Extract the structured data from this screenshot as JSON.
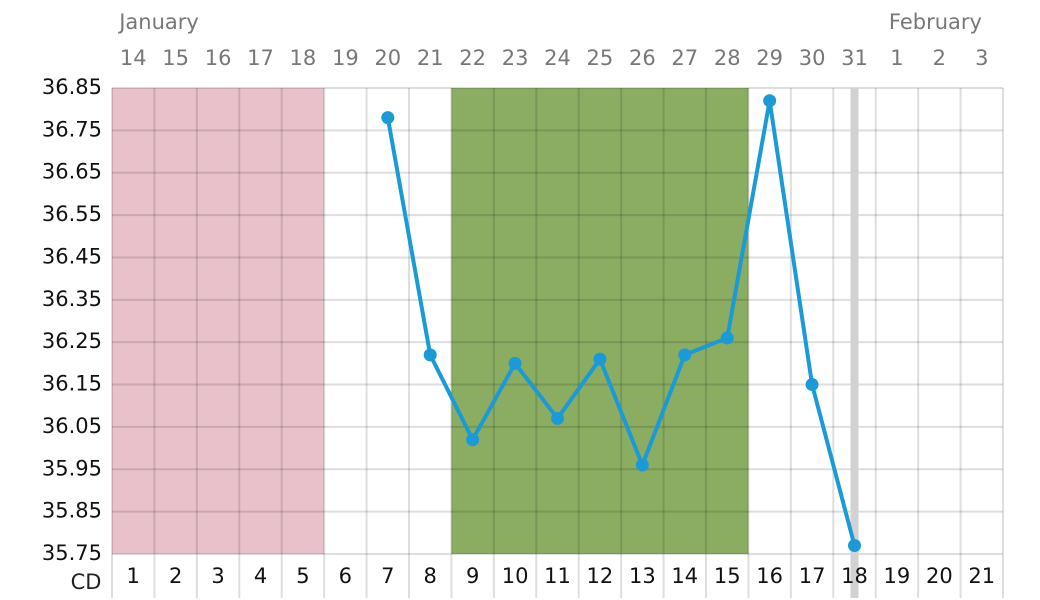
{
  "chart_data": {
    "type": "line",
    "x_label": "CD",
    "categories": [
      1,
      2,
      3,
      4,
      5,
      6,
      7,
      8,
      9,
      10,
      11,
      12,
      13,
      14,
      15,
      16,
      17,
      18,
      19,
      20,
      21
    ],
    "dates": [
      14,
      15,
      16,
      17,
      18,
      19,
      20,
      21,
      22,
      23,
      24,
      25,
      26,
      27,
      28,
      29,
      30,
      31,
      1,
      2,
      3
    ],
    "months": [
      "January",
      null,
      null,
      null,
      null,
      null,
      null,
      null,
      null,
      null,
      null,
      null,
      null,
      null,
      null,
      null,
      null,
      null,
      "February",
      null,
      null
    ],
    "series": [
      {
        "color": "#1b9ad8",
        "values": [
          null,
          null,
          null,
          null,
          null,
          null,
          36.78,
          36.22,
          36.02,
          36.2,
          36.07,
          36.21,
          35.96,
          36.22,
          36.26,
          36.82,
          36.15,
          35.77,
          null,
          null,
          null
        ]
      }
    ],
    "ylim": [
      35.75,
      36.85
    ],
    "yticks": [
      36.85,
      36.75,
      36.65,
      36.55,
      36.45,
      36.35,
      36.25,
      36.15,
      36.05,
      35.95,
      35.85,
      35.75
    ],
    "shaded_ranges": [
      {
        "start": 0,
        "end": 4,
        "color": "#e8c1cb"
      },
      {
        "start": 8,
        "end": 14,
        "color": "#8aad62"
      }
    ],
    "highlight_index": 17,
    "grid": true
  }
}
